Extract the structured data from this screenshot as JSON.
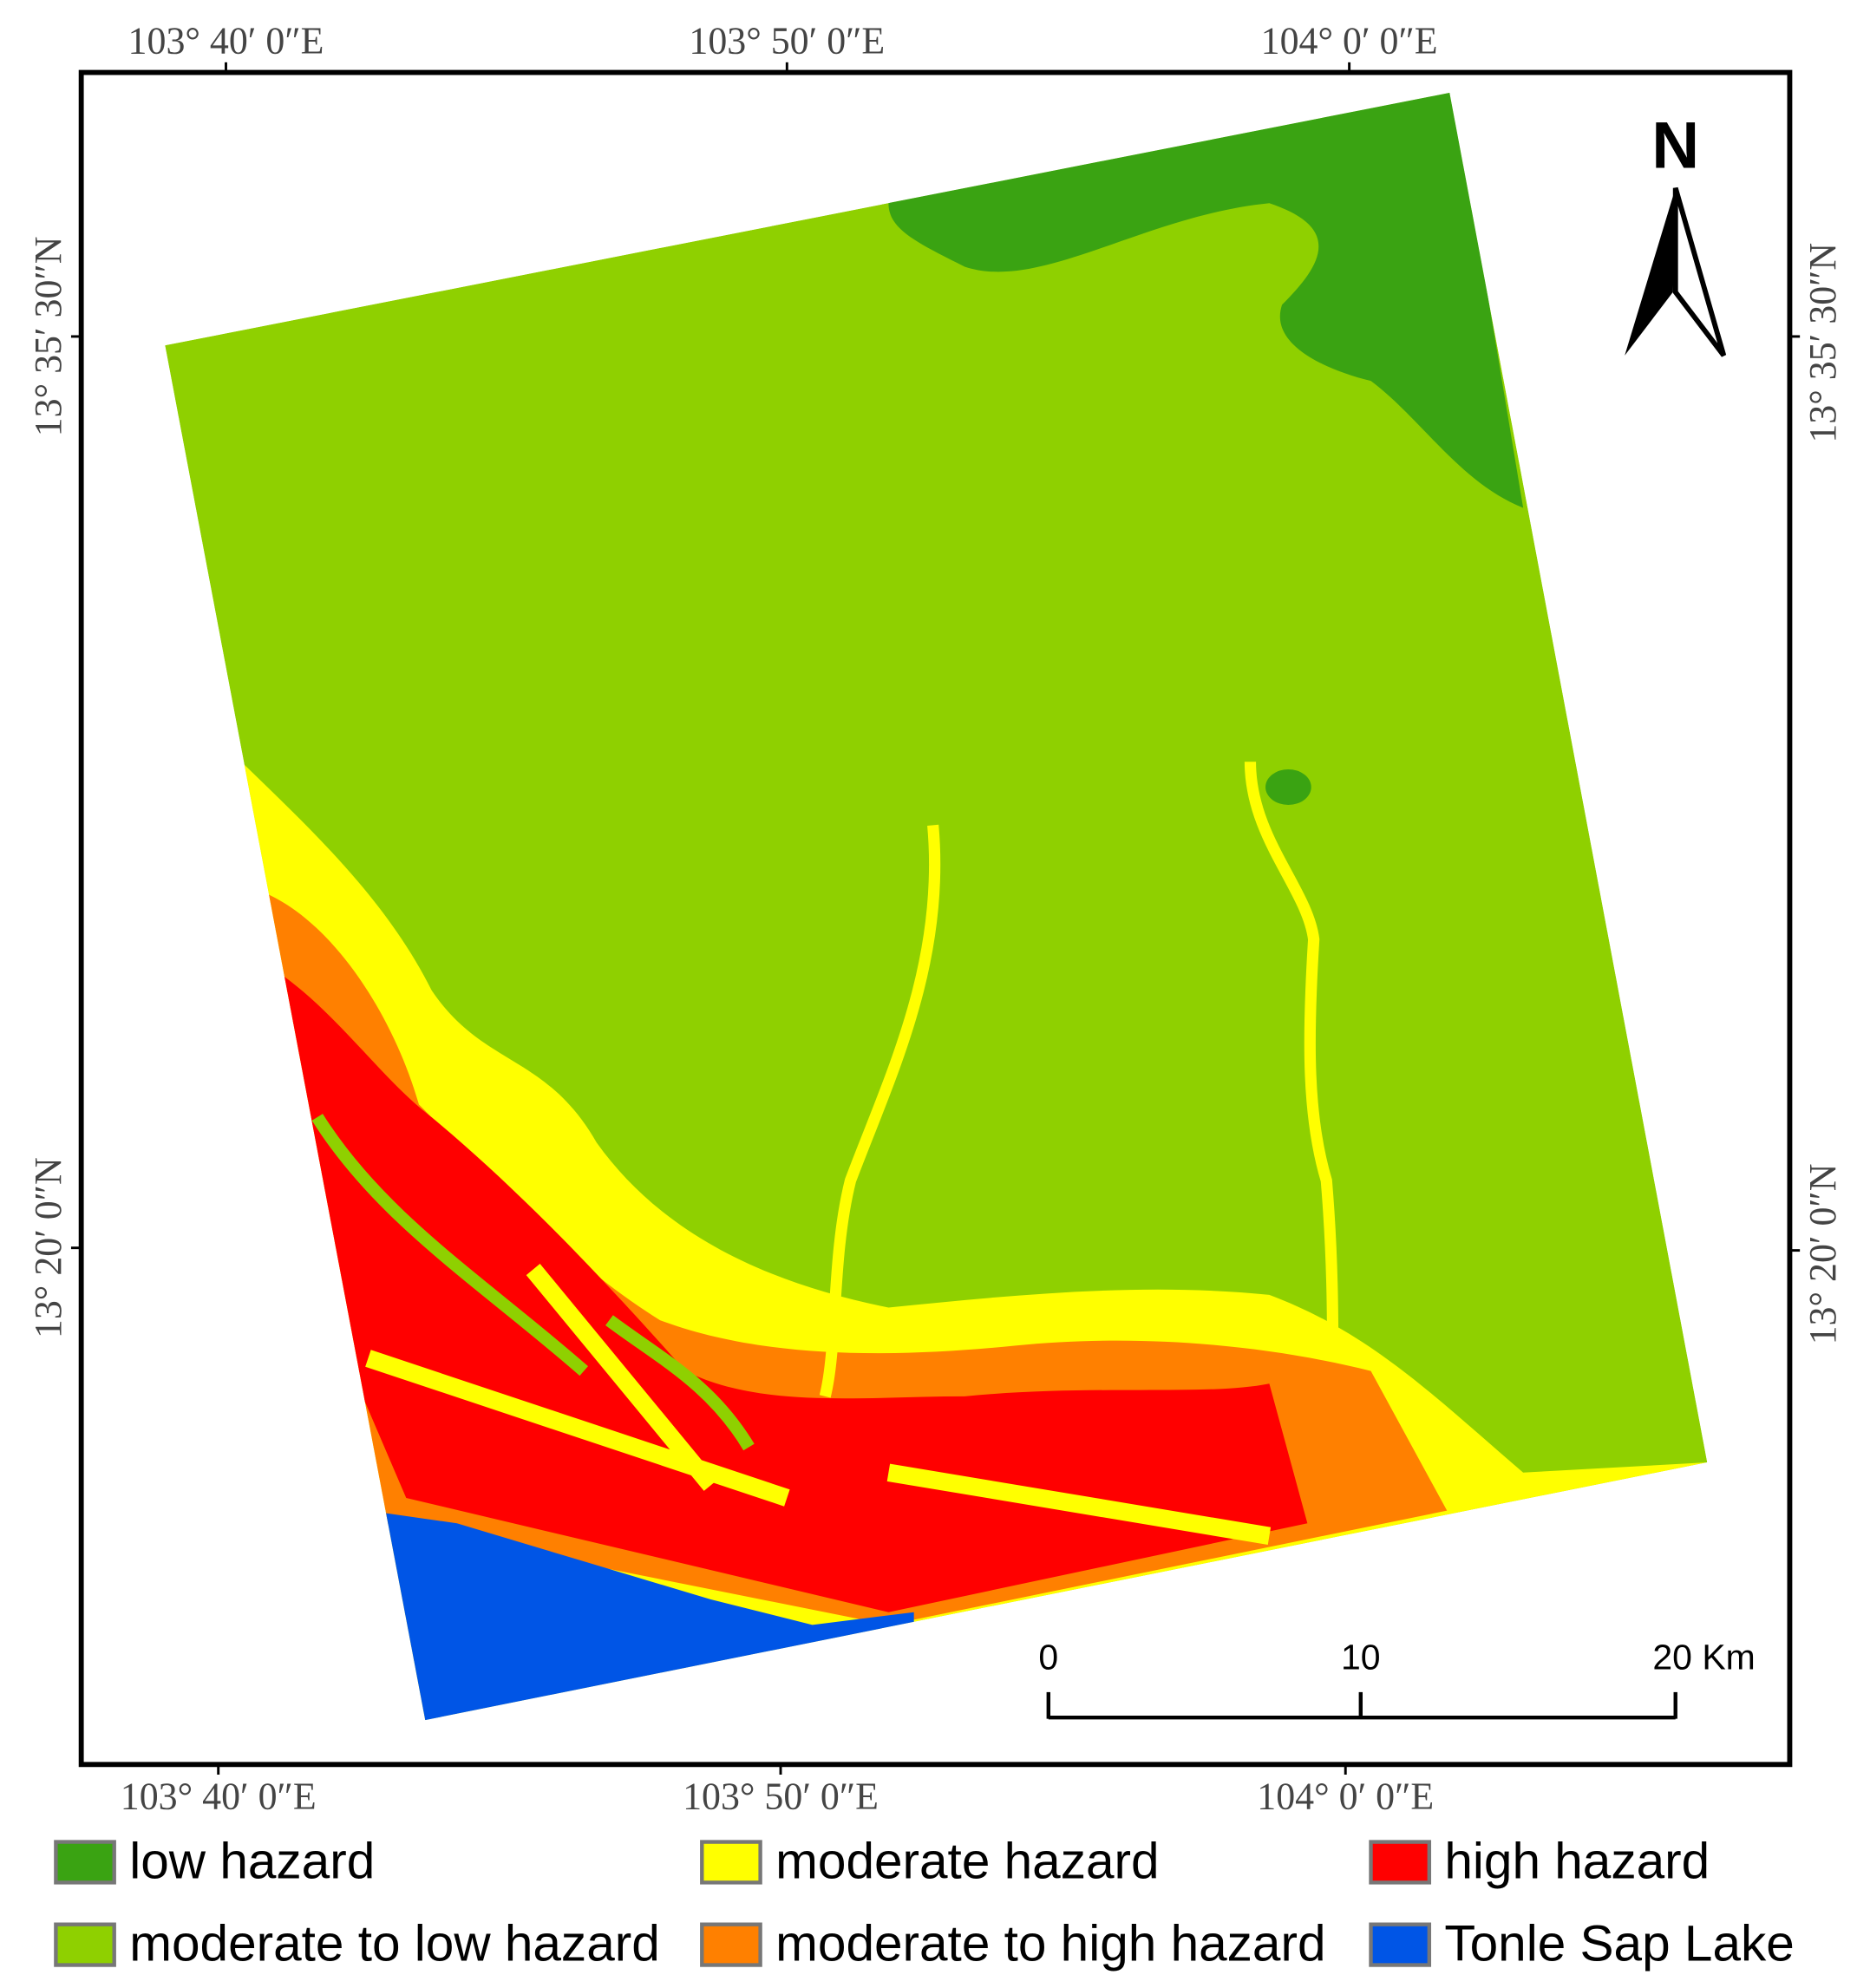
{
  "map": {
    "axis_labels": {
      "top": [
        "103° 40′ 0″E",
        "103° 50′ 0″E",
        "104° 0′ 0″E"
      ],
      "bottom": [
        "103° 40′ 0″E",
        "103° 50′ 0″E",
        "104° 0′ 0″E"
      ],
      "left": [
        "13° 35′ 30″N",
        "13° 20′ 0″N"
      ],
      "right": [
        "13° 35′ 30″N",
        "13° 20′ 0″N"
      ]
    },
    "north": "N",
    "scale_bar": {
      "labels": [
        "0",
        "10",
        "20 Km"
      ]
    },
    "legend": [
      {
        "label": "low hazard",
        "color": "#3aa312"
      },
      {
        "label": "moderate hazard",
        "color": "#ffff00"
      },
      {
        "label": "high hazard",
        "color": "#ff0000"
      },
      {
        "label": "moderate to low hazard",
        "color": "#8fd000"
      },
      {
        "label": "moderate to high hazard",
        "color": "#ff8000"
      },
      {
        "label": "Tonle Sap Lake",
        "color": "#0055e6"
      }
    ]
  }
}
